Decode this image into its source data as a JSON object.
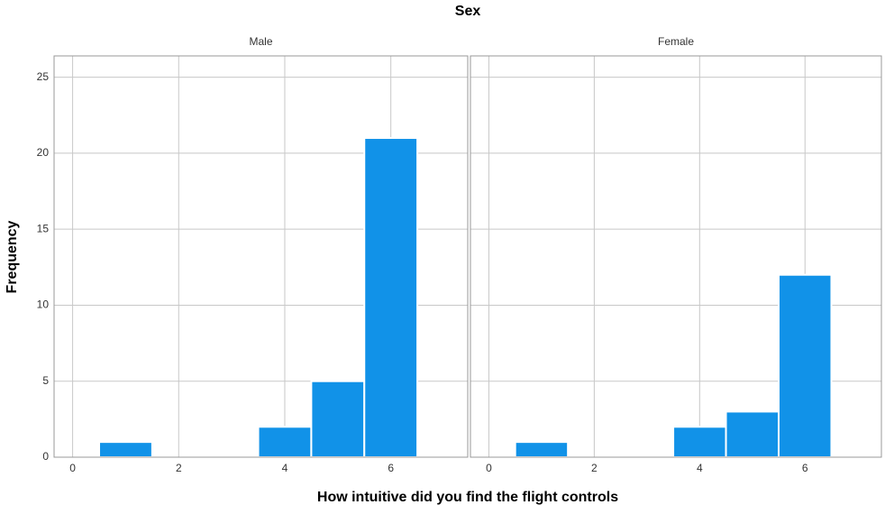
{
  "chart_data": {
    "type": "histogram",
    "title": "Sex",
    "x_label": "How intuitive did you find the flight controls",
    "y_label": "Frequency",
    "bins": [
      0.5,
      1.5,
      2.5,
      3.5,
      4.5,
      5.5,
      6.5
    ],
    "color": "#1192e8",
    "panels": [
      {
        "name": "Male",
        "values": [
          1,
          0,
          0,
          2,
          5,
          21
        ]
      },
      {
        "name": "Female",
        "values": [
          1,
          0,
          0,
          2,
          3,
          12
        ]
      }
    ],
    "xlim": [
      -0.35,
      7.45
    ],
    "xticks": [
      0,
      2,
      4,
      6
    ],
    "ylim": [
      0,
      26.4
    ],
    "yticks": [
      0,
      5,
      10,
      15,
      20,
      25
    ],
    "grid": true
  }
}
